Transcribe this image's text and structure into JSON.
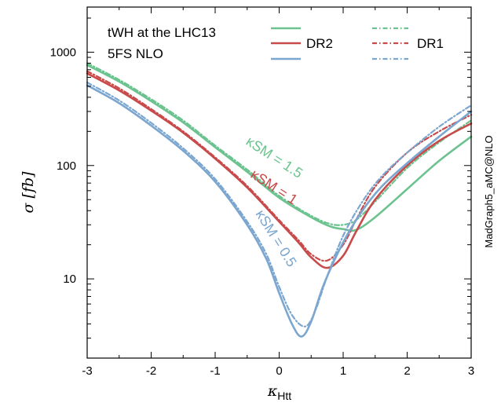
{
  "chart_data": {
    "type": "line",
    "annotations": {
      "line1": "tWH at the LHC13",
      "line2": "5FS NLO"
    },
    "side_label": "MadGraph5_aMC@NLO",
    "xlabel": {
      "symbol": "κ",
      "subscript": "Htt"
    },
    "ylabel": "σ [fb]",
    "xlim": [
      -3,
      3
    ],
    "ylim": [
      2,
      2500
    ],
    "yscale": "log",
    "xticks": [
      -3,
      -2,
      -1,
      0,
      1,
      2,
      3
    ],
    "xtick_labels": [
      "-3",
      "-2",
      "-1",
      "0",
      "1",
      "2",
      "3"
    ],
    "yticks": [
      10,
      100,
      1000
    ],
    "ytick_labels": [
      "10",
      "100",
      "1000"
    ],
    "legend": {
      "placement": "top-right",
      "group_labels": [
        "DR2",
        "DR1"
      ]
    },
    "curve_labels": [
      {
        "text": "κSM = 1.5",
        "color": "#6cc38f"
      },
      {
        "text": "κSM = 1",
        "color": "#c84a4a"
      },
      {
        "text": "κSM = 0.5",
        "color": "#7ba6cf"
      }
    ],
    "series": [
      {
        "scheme": "DR2",
        "kappa_sm": 1.5,
        "color": "#6cc38f",
        "style": "solid",
        "x": [
          -3,
          -2.5,
          -2,
          -1.5,
          -1,
          -0.5,
          0,
          0.5,
          0.8,
          1.0,
          1.2,
          1.5,
          2,
          2.5,
          3
        ],
        "y": [
          770,
          550,
          370,
          240,
          145,
          88,
          52,
          35,
          29,
          27.5,
          27,
          35,
          62,
          110,
          180
        ]
      },
      {
        "scheme": "DR1",
        "kappa_sm": 1.5,
        "color": "#6cc38f",
        "style": "dashdot",
        "x": [
          -3,
          -2.5,
          -2,
          -1.5,
          -1,
          -0.5,
          0,
          0.5,
          0.8,
          1.0,
          1.2,
          1.5,
          2,
          2.5,
          3
        ],
        "y": [
          800,
          570,
          385,
          250,
          150,
          92,
          54,
          36,
          30.5,
          30,
          33,
          48,
          95,
          160,
          250
        ]
      },
      {
        "scheme": "DR2",
        "kappa_sm": 1,
        "color": "#c84a4a",
        "style": "solid",
        "x": [
          -3,
          -2.5,
          -2,
          -1.5,
          -1,
          -0.5,
          0,
          0.3,
          0.5,
          0.75,
          1.0,
          1.2,
          1.5,
          2,
          2.5,
          3
        ],
        "y": [
          650,
          460,
          305,
          195,
          115,
          64,
          32,
          21,
          15.5,
          12.5,
          16,
          26,
          50,
          100,
          165,
          235
        ]
      },
      {
        "scheme": "DR1",
        "kappa_sm": 1,
        "color": "#c84a4a",
        "style": "dashdot",
        "x": [
          -3,
          -2.5,
          -2,
          -1.5,
          -1,
          -0.5,
          0,
          0.3,
          0.5,
          0.75,
          1.0,
          1.2,
          1.5,
          2,
          2.5,
          3
        ],
        "y": [
          680,
          480,
          315,
          200,
          118,
          66,
          33,
          22,
          16.5,
          14.5,
          20,
          33,
          65,
          130,
          200,
          280
        ]
      },
      {
        "scheme": "DR2",
        "kappa_sm": 0.5,
        "color": "#7ba6cf",
        "style": "solid",
        "x": [
          -3,
          -2.5,
          -2,
          -1.5,
          -1,
          -0.5,
          -0.2,
          0,
          0.2,
          0.35,
          0.5,
          0.7,
          1.0,
          1.3,
          1.6,
          2,
          2.5,
          3
        ],
        "y": [
          510,
          355,
          225,
          135,
          72,
          30,
          15,
          7.5,
          4,
          3.1,
          4.2,
          9,
          21,
          40,
          65,
          105,
          180,
          300
        ]
      },
      {
        "scheme": "DR1",
        "kappa_sm": 0.5,
        "color": "#7ba6cf",
        "style": "dashdot",
        "x": [
          -3,
          -2.5,
          -2,
          -1.5,
          -1,
          -0.5,
          -0.2,
          0,
          0.2,
          0.4,
          0.55,
          0.75,
          1.0,
          1.3,
          1.6,
          2,
          2.5,
          3
        ],
        "y": [
          540,
          375,
          238,
          142,
          76,
          32,
          16.5,
          8.5,
          4.8,
          3.8,
          5,
          10.5,
          24,
          48,
          80,
          130,
          220,
          340
        ]
      }
    ]
  }
}
